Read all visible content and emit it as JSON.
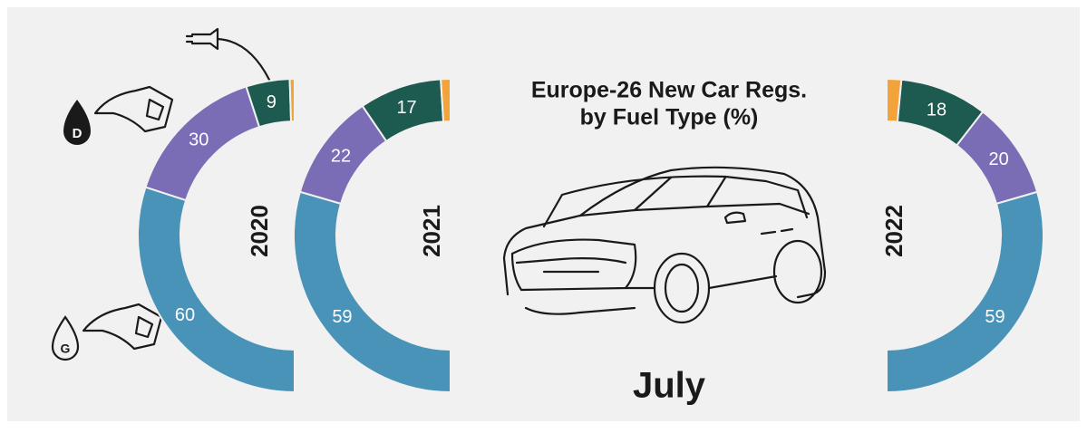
{
  "chart_data": [
    {
      "type": "half-donut",
      "title": "2020",
      "side": "left",
      "values": [
        60,
        30,
        9,
        1
      ],
      "colors": [
        "#4a93b8",
        "#7a6cb5",
        "#1d5a4f",
        "#f2a33a"
      ]
    },
    {
      "type": "half-donut",
      "title": "2021",
      "side": "left",
      "values": [
        59,
        22,
        17,
        2
      ],
      "colors": [
        "#4a93b8",
        "#7a6cb5",
        "#1d5a4f",
        "#f2a33a"
      ]
    },
    {
      "type": "half-donut",
      "title": "2022",
      "side": "right",
      "values": [
        59,
        20,
        18,
        3
      ],
      "colors": [
        "#4a93b8",
        "#7a6cb5",
        "#1d5a4f",
        "#f2a33a"
      ]
    }
  ],
  "header": {
    "title": [
      "Europe-26 New Car Regs.",
      "by Fuel Type (%)"
    ],
    "subtitle": "July"
  }
}
